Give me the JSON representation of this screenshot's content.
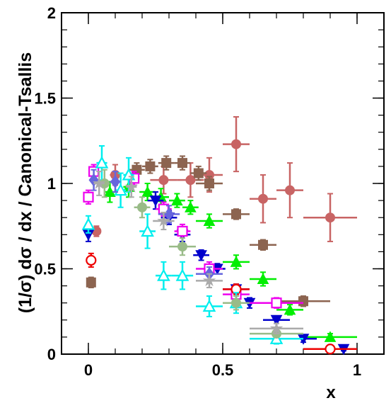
{
  "chart_data": {
    "type": "scatter",
    "title": "",
    "xlabel": "x",
    "ylabel": "(1/σ) dσ / dx / Canonical-Tsallis",
    "xlim": [
      -0.1,
      1.1
    ],
    "ylim": [
      0,
      2
    ],
    "x_ticks": [
      {
        "value": 0,
        "label": "0"
      },
      {
        "value": 0.5,
        "label": "0.5"
      },
      {
        "value": 1,
        "label": "1"
      }
    ],
    "y_ticks": [
      {
        "value": 0,
        "label": "0"
      },
      {
        "value": 0.5,
        "label": "0.5"
      },
      {
        "value": 1,
        "label": "1"
      },
      {
        "value": 1.5,
        "label": "1.5"
      },
      {
        "value": 2,
        "label": "2"
      }
    ],
    "grid": false,
    "legend": "none",
    "series": [
      {
        "color": "#c86464",
        "marker": "circle-filled",
        "points": [
          {
            "x": 0.03,
            "y": 0.72,
            "xerr": 0.01,
            "yerr": 0.03
          },
          {
            "x": 0.1,
            "y": 1.05,
            "xerr": 0.02,
            "yerr": 0.06
          },
          {
            "x": 0.28,
            "y": 1.02,
            "xerr": 0.05,
            "yerr": 0.08
          },
          {
            "x": 0.38,
            "y": 1.02,
            "xerr": 0.05,
            "yerr": 0.1
          },
          {
            "x": 0.45,
            "y": 1.05,
            "xerr": 0.05,
            "yerr": 0.1
          },
          {
            "x": 0.55,
            "y": 1.23,
            "xerr": 0.05,
            "yerr": 0.16
          },
          {
            "x": 0.65,
            "y": 0.91,
            "xerr": 0.05,
            "yerr": 0.14
          },
          {
            "x": 0.75,
            "y": 0.96,
            "xerr": 0.05,
            "yerr": 0.16
          },
          {
            "x": 0.9,
            "y": 0.8,
            "xerr": 0.1,
            "yerr": 0.14
          }
        ]
      },
      {
        "color": "#8c6450",
        "marker": "square-filled",
        "points": [
          {
            "x": 0.01,
            "y": 0.42,
            "xerr": 0.01,
            "yerr": 0.03
          },
          {
            "x": 0.18,
            "y": 1.08,
            "xerr": 0.03,
            "yerr": 0.04
          },
          {
            "x": 0.23,
            "y": 1.1,
            "xerr": 0.03,
            "yerr": 0.04
          },
          {
            "x": 0.29,
            "y": 1.12,
            "xerr": 0.03,
            "yerr": 0.04
          },
          {
            "x": 0.35,
            "y": 1.12,
            "xerr": 0.03,
            "yerr": 0.04
          },
          {
            "x": 0.41,
            "y": 1.06,
            "xerr": 0.03,
            "yerr": 0.04
          },
          {
            "x": 0.45,
            "y": 1.0,
            "xerr": 0.05,
            "yerr": 0.04
          },
          {
            "x": 0.55,
            "y": 0.82,
            "xerr": 0.05,
            "yerr": 0.03
          },
          {
            "x": 0.65,
            "y": 0.64,
            "xerr": 0.05,
            "yerr": 0.03
          },
          {
            "x": 0.8,
            "y": 0.31,
            "xerr": 0.1,
            "yerr": 0.03
          }
        ]
      },
      {
        "color": "#00ee00",
        "marker": "triangle-up-filled",
        "points": [
          {
            "x": 0.08,
            "y": 0.95,
            "xerr": 0.02,
            "yerr": 0.06
          },
          {
            "x": 0.15,
            "y": 0.98,
            "xerr": 0.02,
            "yerr": 0.06
          },
          {
            "x": 0.22,
            "y": 0.95,
            "xerr": 0.03,
            "yerr": 0.05
          },
          {
            "x": 0.27,
            "y": 0.92,
            "xerr": 0.03,
            "yerr": 0.05
          },
          {
            "x": 0.33,
            "y": 0.9,
            "xerr": 0.03,
            "yerr": 0.04
          },
          {
            "x": 0.38,
            "y": 0.86,
            "xerr": 0.03,
            "yerr": 0.04
          },
          {
            "x": 0.45,
            "y": 0.78,
            "xerr": 0.05,
            "yerr": 0.04
          },
          {
            "x": 0.55,
            "y": 0.54,
            "xerr": 0.05,
            "yerr": 0.04
          },
          {
            "x": 0.65,
            "y": 0.44,
            "xerr": 0.05,
            "yerr": 0.04
          },
          {
            "x": 0.75,
            "y": 0.26,
            "xerr": 0.05,
            "yerr": 0.03
          },
          {
            "x": 0.9,
            "y": 0.1,
            "xerr": 0.1,
            "yerr": 0.02
          }
        ]
      },
      {
        "color": "#0000cc",
        "marker": "triangle-down-filled",
        "points": [
          {
            "x": 0.0,
            "y": 0.7,
            "xerr": 0.01,
            "yerr": 0.04
          },
          {
            "x": 0.25,
            "y": 0.9,
            "xerr": 0.03,
            "yerr": 0.05
          },
          {
            "x": 0.3,
            "y": 0.8,
            "xerr": 0.03,
            "yerr": 0.04
          },
          {
            "x": 0.35,
            "y": 0.7,
            "xerr": 0.03,
            "yerr": 0.04
          },
          {
            "x": 0.42,
            "y": 0.58,
            "xerr": 0.03,
            "yerr": 0.03
          },
          {
            "x": 0.48,
            "y": 0.5,
            "xerr": 0.03,
            "yerr": 0.03
          },
          {
            "x": 0.55,
            "y": 0.38,
            "xerr": 0.05,
            "yerr": 0.03
          },
          {
            "x": 0.6,
            "y": 0.3,
            "xerr": 0.05,
            "yerr": 0.03
          },
          {
            "x": 0.7,
            "y": 0.2,
            "xerr": 0.05,
            "yerr": 0.02
          },
          {
            "x": 0.8,
            "y": 0.09,
            "xerr": 0.05,
            "yerr": 0.02
          },
          {
            "x": 0.95,
            "y": 0.03,
            "xerr": 0.05,
            "yerr": 0.01
          }
        ]
      },
      {
        "color": "#ee00ee",
        "marker": "square-open",
        "points": [
          {
            "x": 0.0,
            "y": 0.92,
            "xerr": 0.01,
            "yerr": 0.04
          },
          {
            "x": 0.02,
            "y": 1.07,
            "xerr": 0.01,
            "yerr": 0.04
          },
          {
            "x": 0.17,
            "y": 1.03,
            "xerr": 0.02,
            "yerr": 0.04
          },
          {
            "x": 0.28,
            "y": 0.85,
            "xerr": 0.03,
            "yerr": 0.04
          },
          {
            "x": 0.35,
            "y": 0.72,
            "xerr": 0.03,
            "yerr": 0.04
          },
          {
            "x": 0.45,
            "y": 0.5,
            "xerr": 0.05,
            "yerr": 0.04
          },
          {
            "x": 0.55,
            "y": 0.35,
            "xerr": 0.05,
            "yerr": 0.03
          },
          {
            "x": 0.7,
            "y": 0.3,
            "xerr": 0.1,
            "yerr": 0.03
          }
        ]
      },
      {
        "color": "#ee0000",
        "marker": "circle-open",
        "points": [
          {
            "x": 0.01,
            "y": 0.55,
            "xerr": 0.01,
            "yerr": 0.04
          },
          {
            "x": 0.55,
            "y": 0.38,
            "xerr": 0.05,
            "yerr": 0.03
          },
          {
            "x": 0.9,
            "y": 0.03,
            "xerr": 0.1,
            "yerr": 0.01
          }
        ]
      },
      {
        "color": "#00eeee",
        "marker": "triangle-up-open",
        "points": [
          {
            "x": 0.0,
            "y": 0.76,
            "xerr": 0.01,
            "yerr": 0.05
          },
          {
            "x": 0.05,
            "y": 1.12,
            "xerr": 0.02,
            "yerr": 0.1
          },
          {
            "x": 0.12,
            "y": 0.96,
            "xerr": 0.02,
            "yerr": 0.1
          },
          {
            "x": 0.15,
            "y": 1.05,
            "xerr": 0.02,
            "yerr": 0.1
          },
          {
            "x": 0.22,
            "y": 0.72,
            "xerr": 0.03,
            "yerr": 0.1
          },
          {
            "x": 0.28,
            "y": 0.46,
            "xerr": 0.03,
            "yerr": 0.08
          },
          {
            "x": 0.35,
            "y": 0.46,
            "xerr": 0.04,
            "yerr": 0.08
          },
          {
            "x": 0.45,
            "y": 0.28,
            "xerr": 0.05,
            "yerr": 0.06
          },
          {
            "x": 0.55,
            "y": 0.3,
            "xerr": 0.05,
            "yerr": 0.06
          },
          {
            "x": 0.7,
            "y": 0.09,
            "xerr": 0.1,
            "yerr": 0.03
          }
        ]
      },
      {
        "color": "#99bb88",
        "marker": "circle-filled",
        "points": [
          {
            "x": 0.06,
            "y": 1.0,
            "xerr": 0.02,
            "yerr": 0.08
          },
          {
            "x": 0.2,
            "y": 0.86,
            "xerr": 0.03,
            "yerr": 0.06
          },
          {
            "x": 0.35,
            "y": 0.63,
            "xerr": 0.05,
            "yerr": 0.05
          },
          {
            "x": 0.55,
            "y": 0.3,
            "xerr": 0.05,
            "yerr": 0.04
          },
          {
            "x": 0.7,
            "y": 0.12,
            "xerr": 0.1,
            "yerr": 0.02
          }
        ]
      },
      {
        "color": "#6666dd",
        "marker": "diamond-filled",
        "points": [
          {
            "x": 0.02,
            "y": 1.02,
            "xerr": 0.01,
            "yerr": 0.06
          },
          {
            "x": 0.1,
            "y": 1.01,
            "xerr": 0.02,
            "yerr": 0.06
          },
          {
            "x": 0.3,
            "y": 0.82,
            "xerr": 0.04,
            "yerr": 0.05
          },
          {
            "x": 0.45,
            "y": 0.47,
            "xerr": 0.05,
            "yerr": 0.04
          }
        ]
      },
      {
        "color": "#aaaaaa",
        "marker": "star-filled",
        "points": [
          {
            "x": 0.04,
            "y": 1.0,
            "xerr": 0.02,
            "yerr": 0.07
          },
          {
            "x": 0.16,
            "y": 0.98,
            "xerr": 0.02,
            "yerr": 0.06
          },
          {
            "x": 0.28,
            "y": 0.78,
            "xerr": 0.04,
            "yerr": 0.05
          },
          {
            "x": 0.45,
            "y": 0.43,
            "xerr": 0.05,
            "yerr": 0.04
          },
          {
            "x": 0.7,
            "y": 0.15,
            "xerr": 0.1,
            "yerr": 0.03
          }
        ]
      }
    ]
  }
}
